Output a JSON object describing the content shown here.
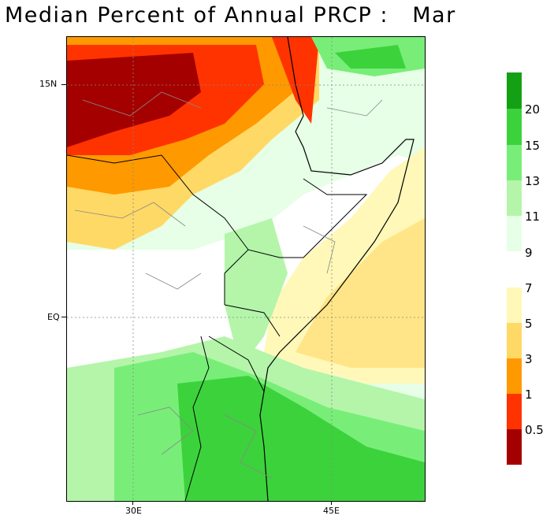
{
  "title": "Median Percent of Annual PRCP :   Mar",
  "map": {
    "lat_labels": [
      "15N",
      "EQ"
    ],
    "lon_labels": [
      "30E",
      "45E"
    ]
  },
  "legend": {
    "colors": [
      "#a50000",
      "#ff3300",
      "#ff9900",
      "#ffd966",
      "#fff08c",
      "#fff8b8",
      "#e6ffe6",
      "#b4f5aa",
      "#78ee78",
      "#3cd23c",
      "#14a014"
    ],
    "labels": [
      "0.5",
      "1",
      "3",
      "5",
      "7",
      "9",
      "11",
      "13",
      "15",
      "20"
    ]
  }
}
